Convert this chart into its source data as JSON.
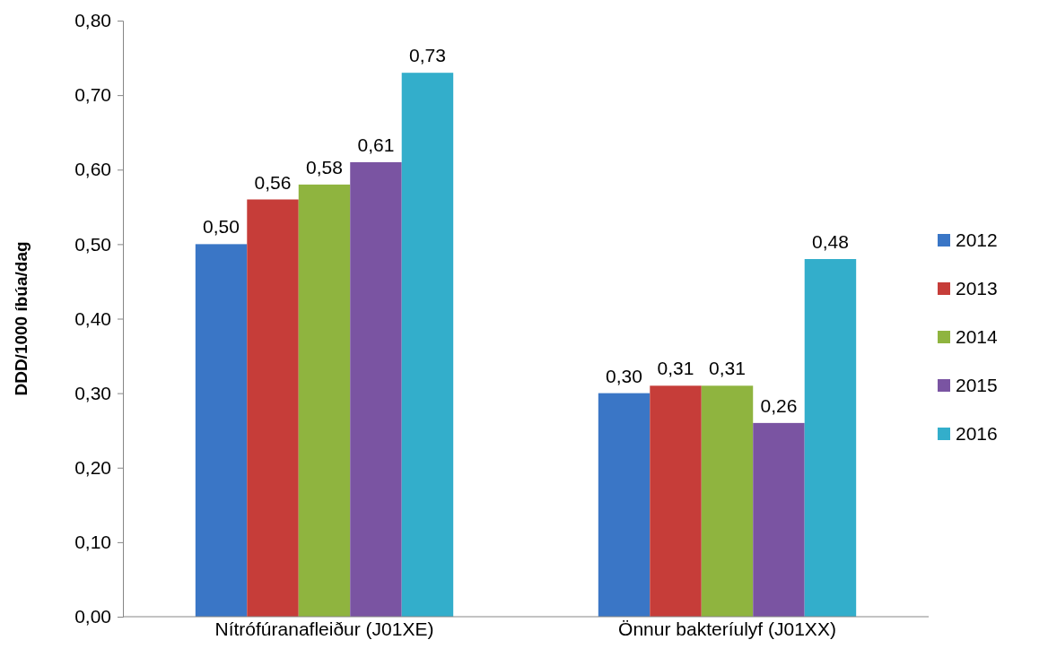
{
  "chart_data": {
    "type": "bar",
    "ylabel": "DDD/1000 íbúa/dag",
    "categories": [
      "Nítrófúranafleiður (J01XE)",
      "Önnur bakteríulyf (J01XX)"
    ],
    "series": [
      {
        "name": "2012",
        "color": "#3a76c6",
        "values": [
          0.5,
          0.3
        ],
        "value_labels": [
          "0,50",
          "0,30"
        ]
      },
      {
        "name": "2013",
        "color": "#c63d39",
        "values": [
          0.56,
          0.31
        ],
        "value_labels": [
          "0,56",
          "0,31"
        ]
      },
      {
        "name": "2014",
        "color": "#8fb43f",
        "values": [
          0.58,
          0.31
        ],
        "value_labels": [
          "0,58",
          "0,31"
        ]
      },
      {
        "name": "2015",
        "color": "#7a54a2",
        "values": [
          0.61,
          0.26
        ],
        "value_labels": [
          "0,61",
          "0,26"
        ]
      },
      {
        "name": "2016",
        "color": "#33aecb",
        "values": [
          0.73,
          0.48
        ],
        "value_labels": [
          "0,73",
          "0,48"
        ]
      }
    ],
    "ylim": [
      0,
      0.8
    ],
    "yticks": [
      {
        "value": 0,
        "label": "0,00"
      },
      {
        "value": 0.1,
        "label": "0,10"
      },
      {
        "value": 0.2,
        "label": "0,20"
      },
      {
        "value": 0.3,
        "label": "0,30"
      },
      {
        "value": 0.4,
        "label": "0,40"
      },
      {
        "value": 0.5,
        "label": "0,50"
      },
      {
        "value": 0.6,
        "label": "0,60"
      },
      {
        "value": 0.7,
        "label": "0,70"
      },
      {
        "value": 0.8,
        "label": "0,80"
      }
    ],
    "legend": "right"
  }
}
